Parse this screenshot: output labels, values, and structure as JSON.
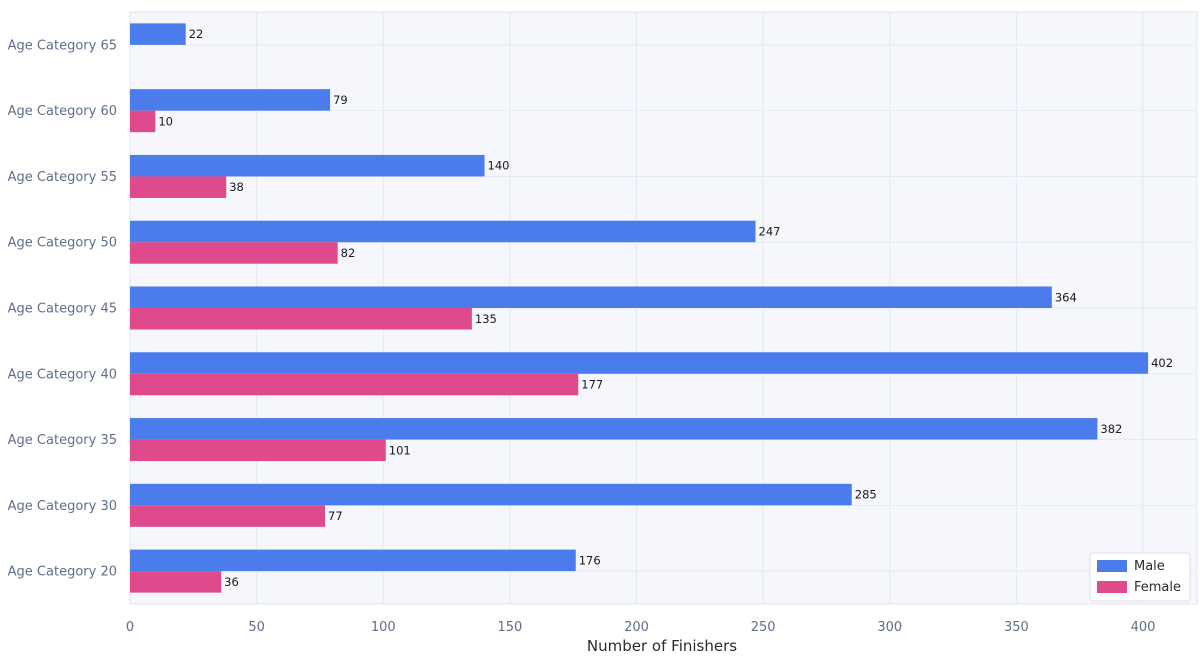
{
  "chart_data": {
    "type": "bar",
    "orientation": "horizontal",
    "categories": [
      "Age Category 20",
      "Age Category 30",
      "Age Category 35",
      "Age Category 40",
      "Age Category 45",
      "Age Category 50",
      "Age Category 55",
      "Age Category 60",
      "Age Category 65"
    ],
    "series": [
      {
        "name": "Male",
        "color": "#4a7cec",
        "values": [
          176,
          285,
          382,
          402,
          364,
          247,
          140,
          79,
          22
        ]
      },
      {
        "name": "Female",
        "color": "#df4a8c",
        "values": [
          36,
          77,
          101,
          177,
          135,
          82,
          38,
          10,
          null
        ]
      }
    ],
    "xlabel": "Number of Finishers",
    "ylabel": "",
    "xlim": [
      0,
      425
    ],
    "xticks": [
      0,
      50,
      100,
      150,
      200,
      250,
      300,
      350,
      400
    ],
    "grid": true,
    "legend": "bottom-right"
  }
}
